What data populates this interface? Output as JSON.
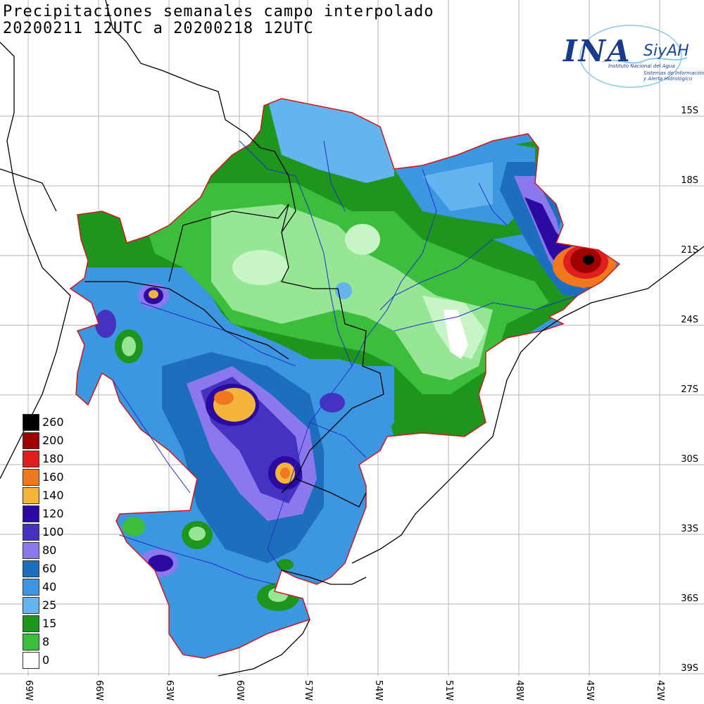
{
  "title": {
    "line1": "Precipitaciones semanales campo interpolado",
    "line2": "20200211 12UTC a 20200218 12UTC"
  },
  "logo": {
    "ina": "INA",
    "siyah": "SiyAH",
    "sub1": "Instituto Nacional del Agua",
    "sub2": "Sistemas de Información y Alerta Hidrológico"
  },
  "latitudes": [
    "15S",
    "18S",
    "21S",
    "24S",
    "27S",
    "30S",
    "33S",
    "36S",
    "39S"
  ],
  "longitudes": [
    "69W",
    "66W",
    "63W",
    "60W",
    "57W",
    "54W",
    "51W",
    "48W",
    "45W",
    "42W"
  ],
  "legend": [
    {
      "label": "260",
      "color": "#000000"
    },
    {
      "label": "200",
      "color": "#a00000"
    },
    {
      "label": "180",
      "color": "#e01e1e"
    },
    {
      "label": "160",
      "color": "#f0781e"
    },
    {
      "label": "140",
      "color": "#f5b43c"
    },
    {
      "label": "120",
      "color": "#2a0aa0"
    },
    {
      "label": "100",
      "color": "#4632c0"
    },
    {
      "label": "80",
      "color": "#8c78ee"
    },
    {
      "label": "60",
      "color": "#1e6ebe"
    },
    {
      "label": "40",
      "color": "#3c96e0"
    },
    {
      "label": "25",
      "color": "#64b4f0"
    },
    {
      "label": "15",
      "color": "#1e961e"
    },
    {
      "label": "8",
      "color": "#3cbe3c"
    },
    {
      "label": "0",
      "color": "#ffffff"
    }
  ]
}
